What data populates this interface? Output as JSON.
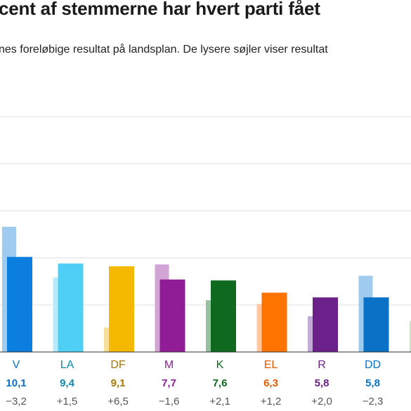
{
  "header": {
    "title": "cent af stemmerne har hvert parti fået",
    "subtitle": "nes foreløbige resultat på landsplan. De lysere søjler viser resultat"
  },
  "chart_data": {
    "type": "bar",
    "title": "cent af stemmerne har hvert parti fået",
    "categories": [
      "V",
      "LA",
      "DF",
      "M",
      "K",
      "EL",
      "R",
      "DD",
      ""
    ],
    "series": [
      {
        "values": [
          13.3,
          7.9,
          2.6,
          9.3,
          5.5,
          5.1,
          3.8,
          8.1,
          3.3
        ]
      },
      {
        "values": [
          10.1,
          9.4,
          9.1,
          7.7,
          7.6,
          6.3,
          5.8,
          5.8,
          null
        ]
      }
    ],
    "value_labels": [
      "10,1",
      "9,4",
      "9,1",
      "7,7",
      "7,6",
      "6,3",
      "5,8",
      "5,8",
      ""
    ],
    "change_labels": [
      "−3,2",
      "+1,5",
      "+6,5",
      "−1,6",
      "+2,1",
      "+1,2",
      "+2,0",
      "−2,3",
      ""
    ],
    "ylim": [
      0,
      25
    ],
    "grid": true,
    "colors": {
      "previous": [
        "#9fcbee",
        "#b9eafa",
        "#f9df9c",
        "#d2a4d6",
        "#97c09f",
        "#ffc8a2",
        "#c4aad7",
        "#9fcbee",
        "#bdeab5"
      ],
      "current": [
        "#0b7ee0",
        "#4fcff5",
        "#f5b800",
        "#911d96",
        "#0f6a1f",
        "#ff7300",
        "#6b2189",
        "#0b71c7",
        "#5fcc4e"
      ],
      "labels": [
        "#0b71c7",
        "#0b8ab0",
        "#a87800",
        "#911d96",
        "#0f6a1f",
        "#e65c00",
        "#6b2189",
        "#0b71c7",
        "#3a9a2e"
      ]
    }
  }
}
